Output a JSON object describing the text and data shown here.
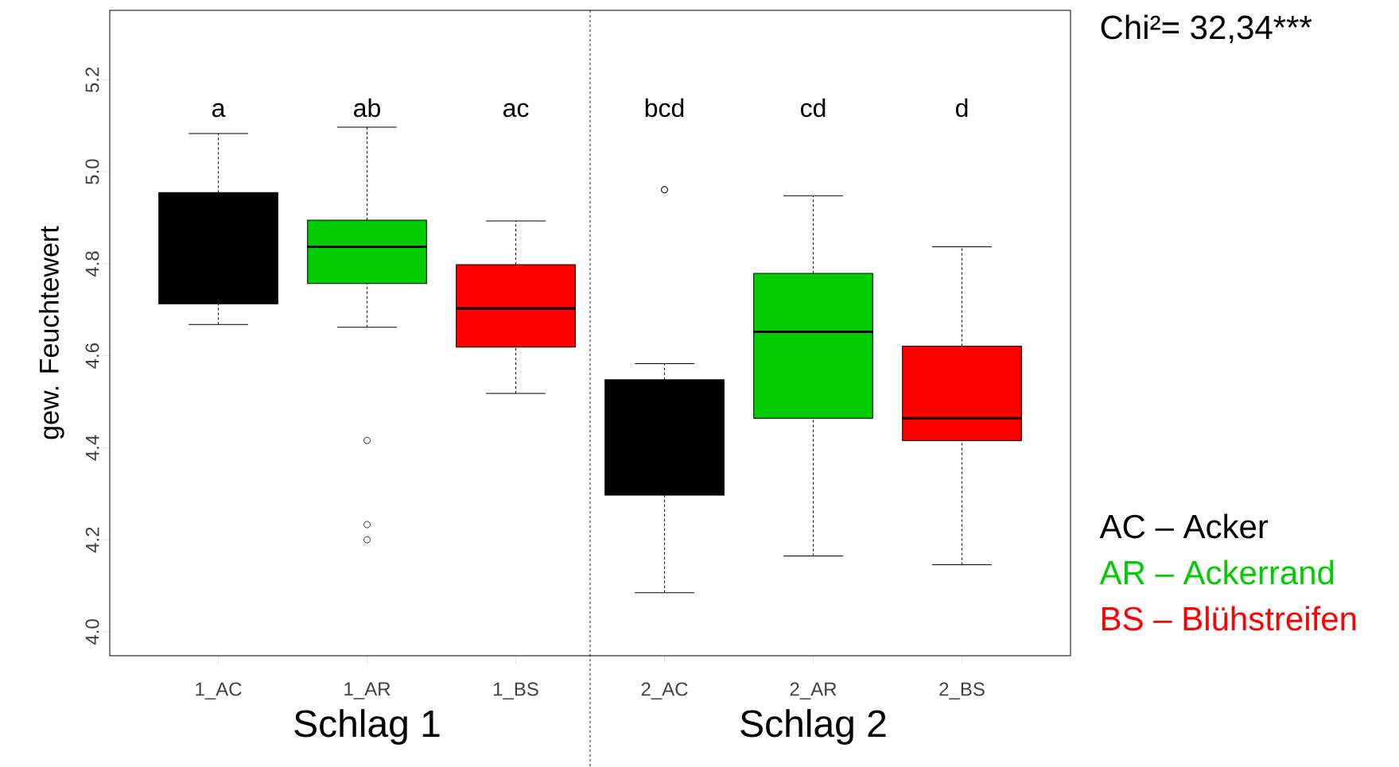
{
  "chart_data": {
    "type": "box",
    "ylabel": "gew. Feuchtewert",
    "categories": [
      "1_AC",
      "1_AR",
      "1_BS",
      "2_AC",
      "2_AR",
      "2_BS"
    ],
    "colors": [
      "#000000",
      "#00cc00",
      "#ff0000",
      "#000000",
      "#00cc00",
      "#ff0000"
    ],
    "boxes": [
      {
        "low": 4.668,
        "q1": 4.713,
        "median": null,
        "q3": 4.955,
        "high": 5.083
      },
      {
        "low": 4.662,
        "q1": 4.757,
        "median": 4.837,
        "q3": 4.895,
        "high": 5.097,
        "outliers": [
          4.416,
          4.233,
          4.2
        ]
      },
      {
        "low": 4.518,
        "q1": 4.619,
        "median": 4.703,
        "q3": 4.798,
        "high": 4.893
      },
      {
        "low": 4.085,
        "q1": 4.297,
        "median": null,
        "q3": 4.548,
        "high": 4.583,
        "outliers": [
          4.961,
          4.961
        ]
      },
      {
        "low": 4.165,
        "q1": 4.464,
        "median": 4.652,
        "q3": 4.779,
        "high": 4.948
      },
      {
        "low": 4.146,
        "q1": 4.416,
        "median": 4.464,
        "q3": 4.621,
        "high": 4.837
      }
    ],
    "ylim": [
      3.948,
      5.351
    ],
    "yticks": [
      {
        "value": 4.0,
        "label": "4.0"
      },
      {
        "value": 4.2,
        "label": "4.2"
      },
      {
        "value": 4.4,
        "label": "4.4"
      },
      {
        "value": 4.6,
        "label": "4.6"
      },
      {
        "value": 4.8,
        "label": "4.8"
      },
      {
        "value": 5.0,
        "label": "5.0"
      },
      {
        "value": 5.2,
        "label": "5.2"
      }
    ],
    "annotations": [
      "a",
      "ab",
      "ac",
      "bcd",
      "cd",
      "d",
      "Chi²= 32,34***",
      "Schlag 1",
      "Schlag 2",
      "AC – Acker",
      "AR – Ackerrand",
      "BS – Blühstreifen"
    ],
    "grid": false
  }
}
